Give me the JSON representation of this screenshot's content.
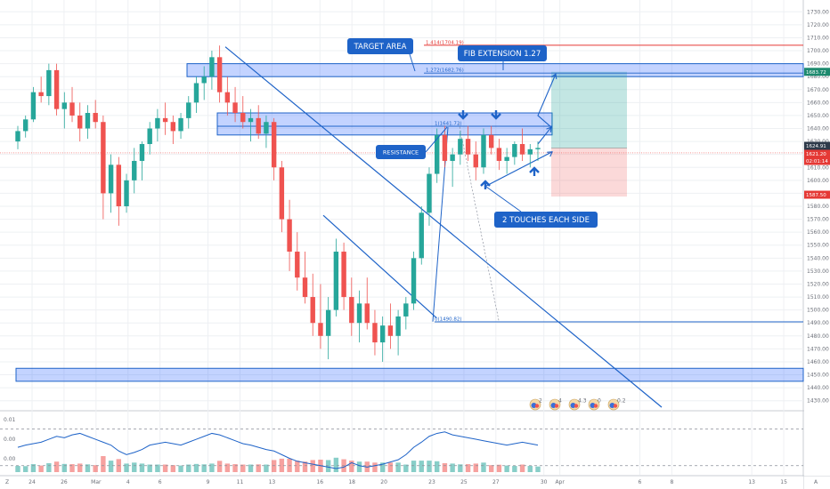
{
  "chart_data": {
    "type": "candlestick",
    "price_axis": {
      "min": 1425,
      "max": 1735,
      "ticks": [
        1430,
        1440,
        1450,
        1460,
        1470,
        1480,
        1490,
        1500,
        1510,
        1520,
        1530,
        1540,
        1550,
        1560,
        1570,
        1580,
        1590,
        1600,
        1610,
        1620,
        1630,
        1640,
        1650,
        1660,
        1670,
        1680,
        1690,
        1700,
        1710,
        1720,
        1730
      ]
    },
    "osc_axis": {
      "min": 20,
      "max": 100,
      "ticks": [
        20,
        40,
        60,
        80,
        100
      ]
    },
    "vol_axis": {
      "labels": [
        "0.01",
        "0.00",
        "0.00"
      ]
    },
    "time_axis": {
      "ticks": [
        {
          "label": "24",
          "t": 0
        },
        {
          "label": "26",
          "t": 2
        },
        {
          "label": "Mar",
          "t": 4
        },
        {
          "label": "4",
          "t": 6
        },
        {
          "label": "6",
          "t": 8
        },
        {
          "label": "9",
          "t": 11
        },
        {
          "label": "11",
          "t": 13
        },
        {
          "label": "13",
          "t": 15
        },
        {
          "label": "16",
          "t": 18
        },
        {
          "label": "18",
          "t": 20
        },
        {
          "label": "20",
          "t": 22
        },
        {
          "label": "23",
          "t": 25
        },
        {
          "label": "25",
          "t": 27
        },
        {
          "label": "27",
          "t": 29
        },
        {
          "label": "30",
          "t": 32
        },
        {
          "label": "Apr",
          "t": 33
        },
        {
          "label": "6",
          "t": 38
        },
        {
          "label": "8",
          "t": 40
        },
        {
          "label": "13",
          "t": 45
        },
        {
          "label": "15",
          "t": 47
        },
        {
          "label": "A",
          "t": 49
        }
      ]
    },
    "candles": [
      [
        1630,
        1642,
        1624,
        1638
      ],
      [
        1638,
        1650,
        1633,
        1647
      ],
      [
        1647,
        1672,
        1645,
        1668
      ],
      [
        1668,
        1680,
        1660,
        1665
      ],
      [
        1665,
        1690,
        1658,
        1685
      ],
      [
        1685,
        1690,
        1650,
        1655
      ],
      [
        1655,
        1668,
        1640,
        1660
      ],
      [
        1660,
        1672,
        1645,
        1650
      ],
      [
        1650,
        1660,
        1630,
        1640
      ],
      [
        1640,
        1658,
        1632,
        1652
      ],
      [
        1652,
        1662,
        1640,
        1645
      ],
      [
        1645,
        1650,
        1570,
        1590
      ],
      [
        1590,
        1620,
        1575,
        1612
      ],
      [
        1612,
        1618,
        1565,
        1580
      ],
      [
        1580,
        1605,
        1575,
        1600
      ],
      [
        1600,
        1625,
        1590,
        1615
      ],
      [
        1615,
        1630,
        1600,
        1628
      ],
      [
        1628,
        1645,
        1620,
        1640
      ],
      [
        1640,
        1655,
        1630,
        1648
      ],
      [
        1648,
        1660,
        1635,
        1645
      ],
      [
        1645,
        1650,
        1628,
        1638
      ],
      [
        1638,
        1652,
        1632,
        1648
      ],
      [
        1648,
        1665,
        1640,
        1660
      ],
      [
        1660,
        1680,
        1652,
        1675
      ],
      [
        1675,
        1688,
        1662,
        1680
      ],
      [
        1680,
        1700,
        1670,
        1695
      ],
      [
        1695,
        1704,
        1660,
        1668
      ],
      [
        1668,
        1680,
        1650,
        1660
      ],
      [
        1660,
        1672,
        1645,
        1652
      ],
      [
        1652,
        1665,
        1640,
        1645
      ],
      [
        1645,
        1655,
        1630,
        1648
      ],
      [
        1648,
        1658,
        1632,
        1636
      ],
      [
        1636,
        1650,
        1625,
        1645
      ],
      [
        1645,
        1648,
        1600,
        1610
      ],
      [
        1610,
        1615,
        1560,
        1570
      ],
      [
        1570,
        1585,
        1530,
        1545
      ],
      [
        1545,
        1560,
        1515,
        1525
      ],
      [
        1525,
        1545,
        1505,
        1510
      ],
      [
        1510,
        1528,
        1480,
        1490
      ],
      [
        1490,
        1520,
        1470,
        1480
      ],
      [
        1480,
        1510,
        1462,
        1500
      ],
      [
        1500,
        1555,
        1495,
        1545
      ],
      [
        1545,
        1552,
        1500,
        1510
      ],
      [
        1510,
        1525,
        1480,
        1490
      ],
      [
        1490,
        1515,
        1475,
        1505
      ],
      [
        1505,
        1525,
        1485,
        1490
      ],
      [
        1490,
        1500,
        1465,
        1475
      ],
      [
        1475,
        1495,
        1460,
        1488
      ],
      [
        1488,
        1505,
        1470,
        1480
      ],
      [
        1480,
        1500,
        1465,
        1495
      ],
      [
        1495,
        1510,
        1485,
        1505
      ],
      [
        1505,
        1545,
        1500,
        1540
      ],
      [
        1540,
        1580,
        1535,
        1575
      ],
      [
        1575,
        1610,
        1565,
        1605
      ],
      [
        1605,
        1640,
        1598,
        1635
      ],
      [
        1635,
        1642,
        1610,
        1615
      ],
      [
        1615,
        1625,
        1595,
        1620
      ],
      [
        1620,
        1638,
        1612,
        1632
      ],
      [
        1632,
        1642,
        1615,
        1620
      ],
      [
        1620,
        1630,
        1600,
        1610
      ],
      [
        1610,
        1640,
        1605,
        1635
      ],
      [
        1635,
        1642,
        1620,
        1625
      ],
      [
        1625,
        1632,
        1608,
        1615
      ],
      [
        1615,
        1625,
        1605,
        1618
      ],
      [
        1618,
        1630,
        1612,
        1628
      ],
      [
        1628,
        1640,
        1615,
        1620
      ],
      [
        1620,
        1628,
        1610,
        1624
      ],
      [
        1624,
        1630,
        1615,
        1625
      ]
    ],
    "volume_colors": {
      "up": "#26a69a",
      "down": "#ef5350"
    },
    "oscillator": [
      55,
      58,
      60,
      62,
      66,
      70,
      68,
      72,
      74,
      70,
      66,
      62,
      58,
      50,
      45,
      48,
      52,
      58,
      60,
      62,
      60,
      58,
      62,
      66,
      70,
      74,
      72,
      68,
      64,
      60,
      58,
      55,
      52,
      50,
      45,
      40,
      36,
      34,
      32,
      30,
      28,
      26,
      28,
      34,
      30,
      28,
      30,
      32,
      35,
      38,
      45,
      55,
      62,
      70,
      74,
      76,
      72,
      70,
      68,
      66,
      64,
      62,
      60,
      58,
      60,
      62,
      60,
      58
    ],
    "fib_levels": [
      {
        "label": "1.414(1704.19)",
        "value": 1704.19,
        "color": "#e53935"
      },
      {
        "label": "1.272(1682.76)",
        "value": 1682.76,
        "color": "#1e63c8"
      },
      {
        "label": "1(1641.72)",
        "value": 1641.72,
        "color": "#1e63c8"
      },
      {
        "label": "0(1490.82)",
        "value": 1490.82,
        "color": "#1e63c8"
      }
    ],
    "zones": [
      {
        "name": "target-zone",
        "low": 1680,
        "high": 1690
      },
      {
        "name": "resistance-zone",
        "low": 1635,
        "high": 1652
      },
      {
        "name": "support-zone",
        "low": 1445,
        "high": 1455
      }
    ],
    "price_tags": [
      {
        "label": "1683.72",
        "value": 1683.72,
        "color": "#1d8a6e"
      },
      {
        "label": "1624.91",
        "value": 1624.91,
        "color": "#2e3a4a"
      },
      {
        "label": "1621.20",
        "value": 1621.2,
        "color": "#e53935"
      },
      {
        "label": "02:01:14",
        "value": 1615,
        "color": "#e53935"
      },
      {
        "label": "1587.50",
        "value": 1587.5,
        "color": "#e53935"
      }
    ],
    "annotations": [
      {
        "text": "TARGET AREA"
      },
      {
        "text": "FIB EXTENSION 1.27"
      },
      {
        "text": "RESISTANCE"
      },
      {
        "text": "2 TOUCHES EACH SIDE"
      }
    ],
    "event_badges": [
      "2",
      "4",
      "4.3",
      "0",
      "0.2"
    ],
    "corner_label": "Z"
  }
}
